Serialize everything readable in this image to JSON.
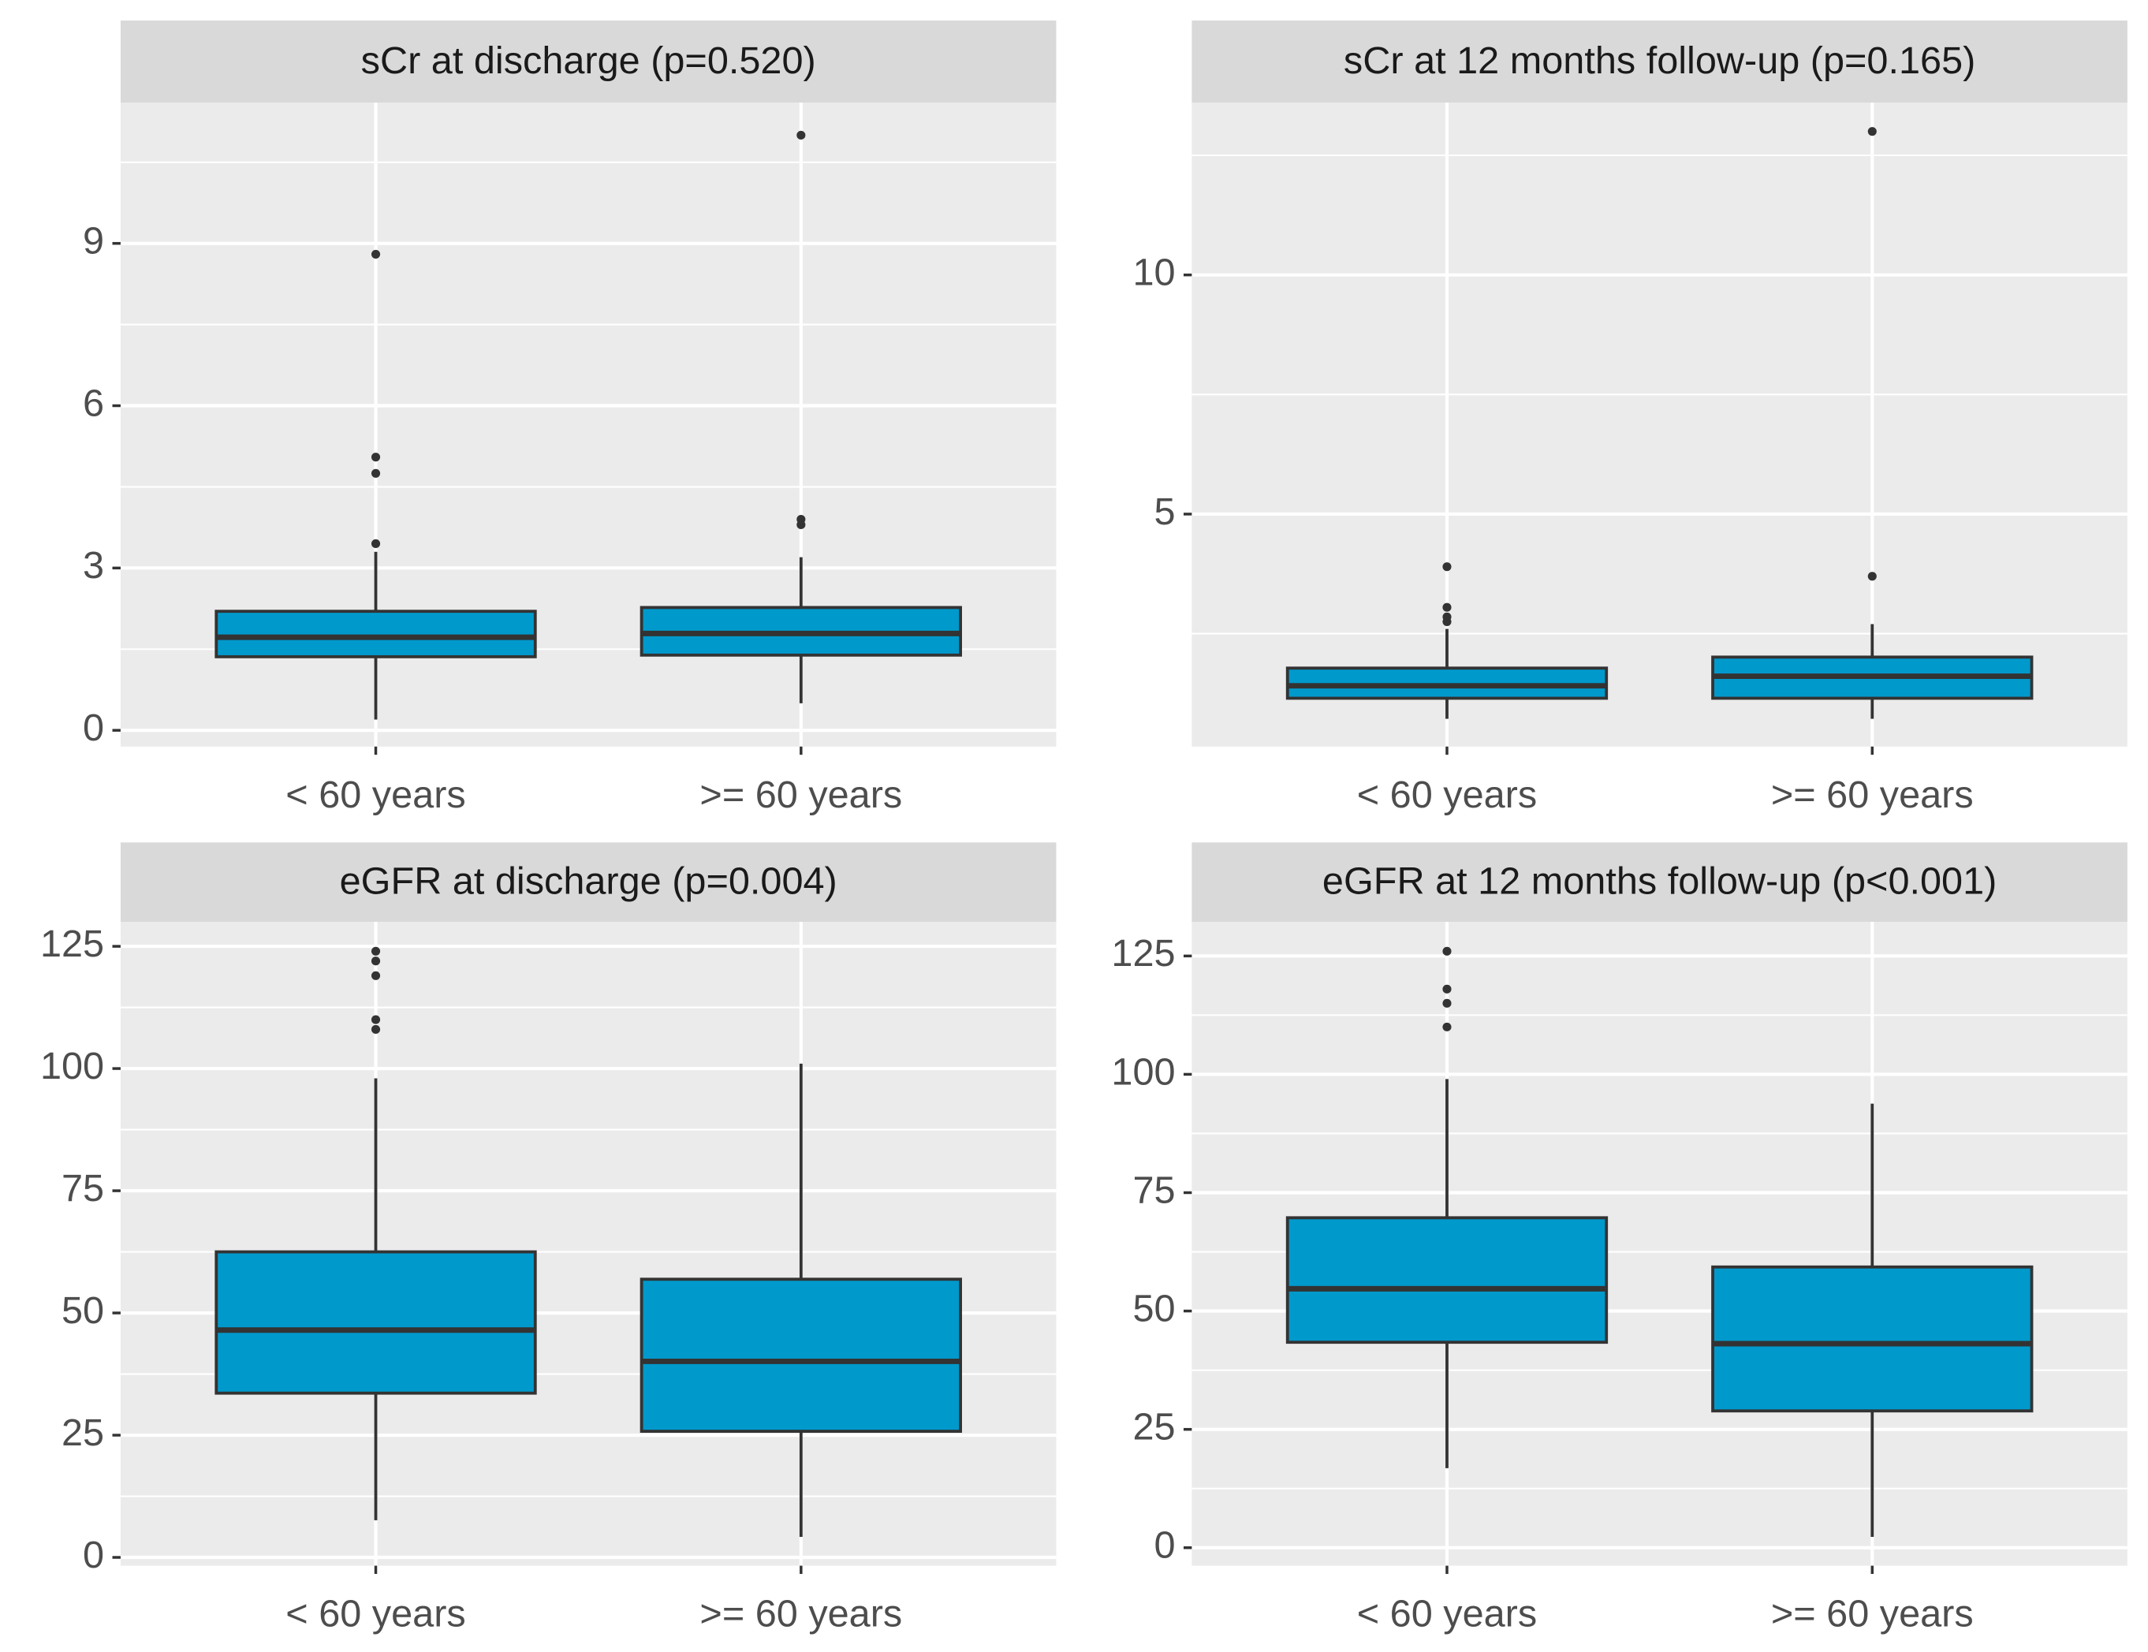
{
  "chart_data": [
    {
      "type": "box",
      "title": "sCr at discharge (p=0.520)",
      "categories": [
        "< 60 years",
        ">= 60 years"
      ],
      "color": "#0099cc",
      "grid": true,
      "ylim": [
        -0.3,
        11.6
      ],
      "yticks": [
        0,
        3,
        6,
        9
      ],
      "minor_yticks": [
        1.5,
        4.5,
        7.5,
        10.5
      ],
      "boxes": [
        {
          "low": 0.2,
          "q1": 1.36,
          "median": 1.72,
          "q3": 2.2,
          "high": 3.3,
          "outliers": [
            3.45,
            4.75,
            5.05,
            8.8
          ]
        },
        {
          "low": 0.5,
          "q1": 1.39,
          "median": 1.79,
          "q3": 2.27,
          "high": 3.2,
          "outliers": [
            3.8,
            3.9,
            11.0
          ]
        }
      ]
    },
    {
      "type": "box",
      "title": "sCr at 12 months follow-up (p=0.165)",
      "categories": [
        "< 60 years",
        ">= 60 years"
      ],
      "color": "#0099cc",
      "grid": true,
      "ylim": [
        0.14,
        13.6
      ],
      "yticks": [
        5,
        10
      ],
      "minor_yticks": [
        2.5,
        7.5,
        12.5
      ],
      "boxes": [
        {
          "low": 0.72,
          "q1": 1.15,
          "median": 1.41,
          "q3": 1.78,
          "high": 2.6,
          "outliers": [
            2.75,
            2.85,
            3.05,
            3.9
          ]
        },
        {
          "low": 0.72,
          "q1": 1.15,
          "median": 1.61,
          "q3": 2.01,
          "high": 2.7,
          "outliers": [
            3.7,
            13.0
          ]
        }
      ]
    },
    {
      "type": "box",
      "title": "eGFR at discharge (p=0.004)",
      "categories": [
        "< 60 years",
        ">= 60 years"
      ],
      "color": "#0099cc",
      "grid": true,
      "ylim": [
        -1.7,
        130
      ],
      "yticks": [
        0,
        25,
        50,
        75,
        100,
        125
      ],
      "minor_yticks": [
        12.5,
        37.5,
        62.5,
        87.5,
        112.5
      ],
      "boxes": [
        {
          "low": 7.6,
          "q1": 33.6,
          "median": 46.5,
          "q3": 62.5,
          "high": 98,
          "outliers": [
            108,
            110,
            119,
            122,
            124
          ]
        },
        {
          "low": 4.2,
          "q1": 25.8,
          "median": 40.1,
          "q3": 56.9,
          "high": 101,
          "outliers": []
        }
      ]
    },
    {
      "type": "box",
      "title": "eGFR at 12 months follow-up (p<0.001)",
      "categories": [
        "< 60 years",
        ">= 60 years"
      ],
      "color": "#0099cc",
      "grid": true,
      "ylim": [
        -3.8,
        132.2
      ],
      "yticks": [
        0,
        25,
        50,
        75,
        100,
        125
      ],
      "minor_yticks": [
        12.5,
        37.5,
        62.5,
        87.5,
        112.5
      ],
      "boxes": [
        {
          "low": 16.8,
          "q1": 43.4,
          "median": 54.7,
          "q3": 69.7,
          "high": 99,
          "outliers": [
            110,
            115,
            118,
            126
          ]
        },
        {
          "low": 2.3,
          "q1": 28.9,
          "median": 43.1,
          "q3": 59.3,
          "high": 93.8,
          "outliers": []
        }
      ]
    }
  ]
}
